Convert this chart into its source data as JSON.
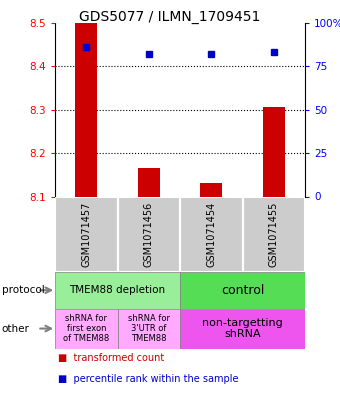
{
  "title": "GDS5077 / ILMN_1709451",
  "samples": [
    "GSM1071457",
    "GSM1071456",
    "GSM1071454",
    "GSM1071455"
  ],
  "transformed_counts": [
    8.5,
    8.165,
    8.13,
    8.305
  ],
  "percentile_ranks": [
    86,
    82,
    82,
    83
  ],
  "ylim": [
    8.1,
    8.5
  ],
  "y_ticks_left": [
    8.1,
    8.2,
    8.3,
    8.4,
    8.5
  ],
  "y_ticks_right": [
    0,
    25,
    50,
    75,
    100
  ],
  "bar_color": "#cc0000",
  "dot_color": "#0000cc",
  "sample_bg_color": "#cccccc",
  "prot_color_left": "#99ee99",
  "prot_color_right": "#55dd55",
  "other_color_left": "#ffaaff",
  "other_color_right": "#ee55ee",
  "legend_red_label": "transformed count",
  "legend_blue_label": "percentile rank within the sample"
}
